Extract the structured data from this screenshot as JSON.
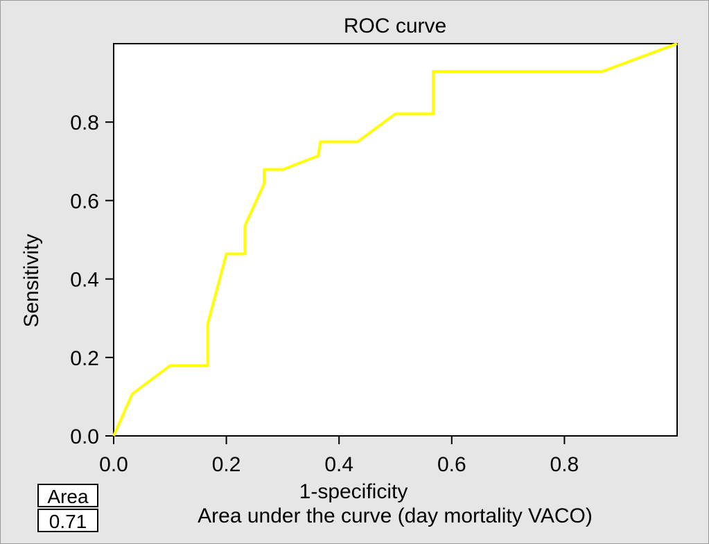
{
  "chart_data": {
    "type": "line",
    "title": "ROC curve",
    "xlabel": "1-specificity",
    "ylabel": "Sensitivity",
    "xlim": [
      0,
      1
    ],
    "ylim": [
      0,
      1
    ],
    "xticks": [
      "0.0",
      "0.2",
      "0.4",
      "0.6",
      "0.8"
    ],
    "yticks": [
      "0.0",
      "0.2",
      "0.4",
      "0.6",
      "0.8"
    ],
    "grid": false,
    "line_color": "#ffff00",
    "plot_background": "#ffffff",
    "series": [
      {
        "x": [
          0,
          0.033,
          0.1,
          0.167,
          0.167,
          0.2,
          0.233,
          0.233,
          0.267,
          0.267,
          0.3,
          0.363,
          0.367,
          0.433,
          0.5,
          0.567,
          0.567,
          0.7,
          0.867,
          1.0
        ],
        "y": [
          0,
          0.107,
          0.179,
          0.179,
          0.286,
          0.464,
          0.464,
          0.536,
          0.643,
          0.679,
          0.679,
          0.714,
          0.75,
          0.75,
          0.821,
          0.821,
          0.929,
          0.929,
          0.929,
          1.0
        ]
      }
    ]
  },
  "area_table": {
    "header": "Area",
    "value": "0.71"
  },
  "caption": "Area under the curve (day mortality VACO)"
}
